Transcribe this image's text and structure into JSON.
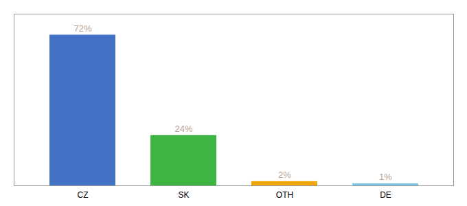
{
  "chart_data": {
    "type": "bar",
    "categories": [
      "CZ",
      "SK",
      "OTH",
      "DE"
    ],
    "values": [
      72,
      24,
      2,
      1
    ],
    "colors": [
      "#4472c4",
      "#3cb543",
      "#f0a500",
      "#7ec8e3"
    ],
    "value_labels": [
      "72%",
      "24%",
      "2%",
      "1%"
    ],
    "data_labels": true,
    "ylim": [
      0,
      82
    ],
    "grid": false,
    "tick_labels": "x"
  }
}
